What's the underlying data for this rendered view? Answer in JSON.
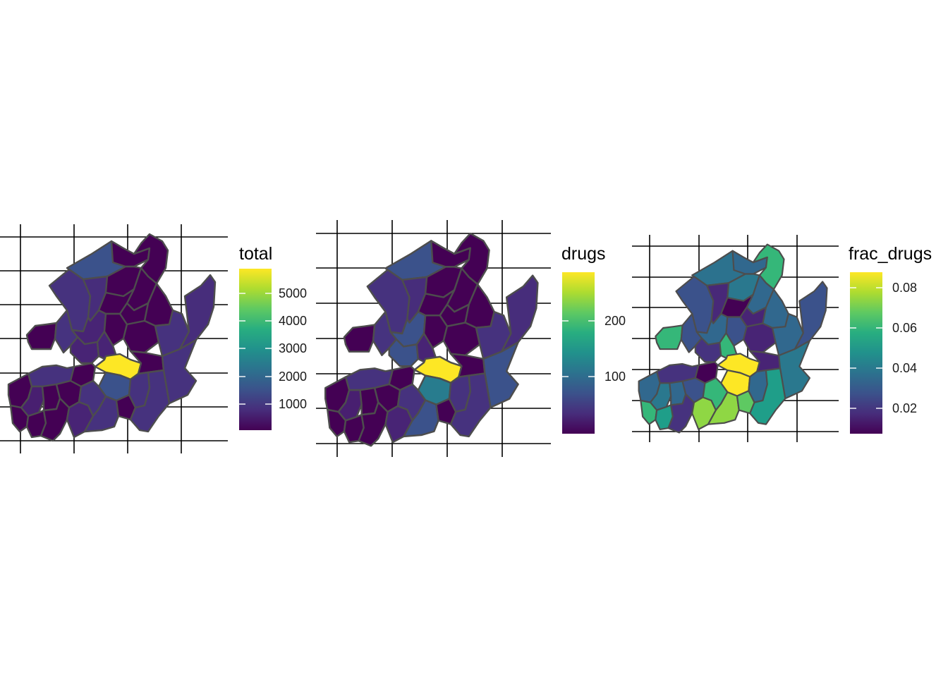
{
  "panels": [
    {
      "variable": "total",
      "legend_title": "total",
      "legend_ticks": [
        "1000",
        "2000",
        "3000",
        "4000",
        "5000"
      ],
      "region_colors": {
        "n1": "#3b528b",
        "n2": "#440154",
        "n3": "#440154",
        "n4": "#46327e",
        "n5": "#472d7b",
        "n6": "#440154",
        "n7": "#440154",
        "n8": "#440154",
        "n9": "#440154",
        "n10": "#440154",
        "n11": "#440154",
        "n12": "#46337f",
        "c1": "#482475",
        "c2": "#440154",
        "c3": "#482475",
        "c4": "#482475",
        "cc": "#fde725",
        "cs": "#3b528b",
        "e1": "#440154",
        "e2": "#46327e",
        "e3": "#472d7b",
        "e4": "#440154",
        "e5": "#46327e",
        "w1": "#46327e",
        "w2": "#440154",
        "w3": "#440154",
        "w4": "#481f70",
        "w5": "#440154",
        "w6": "#440154",
        "w7": "#440154",
        "w8": "#440154",
        "w9": "#440154",
        "w10": "#482475",
        "w11": "#46327e",
        "s1": "#46327e",
        "s2": "#440154",
        "s3": "#46327e",
        "s4": "#46327e"
      }
    },
    {
      "variable": "drugs",
      "legend_title": "drugs",
      "legend_ticks": [
        "100",
        "200"
      ],
      "region_colors": {
        "n1": "#3b528b",
        "n2": "#440154",
        "n3": "#440154",
        "n4": "#46327e",
        "n5": "#472d7b",
        "n6": "#440154",
        "n7": "#440154",
        "n8": "#440154",
        "n9": "#440154",
        "n10": "#440154",
        "n11": "#440154",
        "n12": "#46337f",
        "c1": "#3b528b",
        "c2": "#440154",
        "c3": "#3b528b",
        "c4": "#482475",
        "cc": "#fde725",
        "cs": "#287c8e",
        "e1": "#440154",
        "e2": "#46327e",
        "e3": "#472d7b",
        "e4": "#440154",
        "e5": "#3b528b",
        "w1": "#46327e",
        "w2": "#440154",
        "w3": "#440154",
        "w4": "#481f70",
        "w5": "#440154",
        "w6": "#440154",
        "w7": "#440154",
        "w8": "#440154",
        "w9": "#440154",
        "w10": "#482475",
        "w11": "#46327e",
        "s1": "#3b528b",
        "s2": "#440154",
        "s3": "#46327e",
        "s4": "#46327e"
      }
    },
    {
      "variable": "frac_drugs",
      "legend_title": "frac_drugs",
      "legend_ticks": [
        "0.02",
        "0.04",
        "0.06",
        "0.08"
      ],
      "region_colors": {
        "n1": "#2c728e",
        "n2": "#31688e",
        "n3": "#35b779",
        "n4": "#3b528b",
        "n5": "#482878",
        "n6": "#2a788e",
        "n7": "#31688e",
        "n8": "#440154",
        "n9": "#482475",
        "n10": "#31688e",
        "n11": "#35b779",
        "n12": "#3b528b",
        "c1": "#31688e",
        "c2": "#3b528b",
        "c3": "#46337f",
        "c4": "#35b779",
        "cc": "#fde725",
        "cs": "#fde725",
        "e1": "#482475",
        "e2": "#31688e",
        "e3": "#3b528b",
        "e4": "#482475",
        "e5": "#2a788e",
        "w1": "#46327e",
        "w2": "#440154",
        "w3": "#31688e",
        "w4": "#2a788e",
        "w5": "#35b779",
        "w6": "#31688e",
        "w7": "#1f9e89",
        "w8": "#3b528b",
        "w9": "#46327e",
        "w10": "#8fd744",
        "w11": "#35b779",
        "s1": "#8fd744",
        "s2": "#5ec962",
        "s3": "#31688e",
        "s4": "#1f9e89"
      }
    }
  ],
  "colors": {
    "scale": [
      "#440154",
      "#472d7b",
      "#3b528b",
      "#2c728e",
      "#21918c",
      "#28ae80",
      "#5ec962",
      "#addc30",
      "#fde725"
    ],
    "border": "#4d4d4d",
    "grid": "#000000",
    "background": "#ffffff"
  }
}
